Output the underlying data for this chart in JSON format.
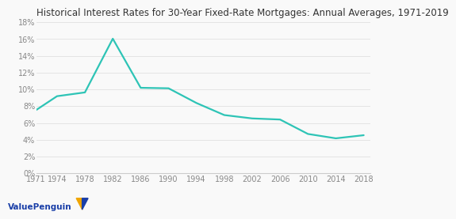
{
  "title": "Historical Interest Rates for 30-Year Fixed-Rate Mortgages: Annual Averages, 1971-2019",
  "line_color": "#2ec4b6",
  "background_color": "#f9f9f9",
  "years": [
    1971,
    1974,
    1978,
    1982,
    1986,
    1990,
    1994,
    1998,
    2002,
    2006,
    2010,
    2014,
    2018
  ],
  "rates": [
    7.54,
    9.19,
    9.64,
    16.04,
    10.19,
    10.13,
    8.38,
    6.94,
    6.54,
    6.41,
    4.69,
    4.17,
    4.54
  ],
  "xtick_years": [
    1971,
    1974,
    1978,
    1982,
    1986,
    1990,
    1994,
    1998,
    2002,
    2006,
    2010,
    2014,
    2018
  ],
  "ytick_vals": [
    0,
    2,
    4,
    6,
    8,
    10,
    12,
    14,
    16,
    18
  ],
  "ylim": [
    0,
    18
  ],
  "xlim_min": 1971,
  "xlim_max": 2019,
  "title_fontsize": 8.5,
  "tick_fontsize": 7.0,
  "line_width": 1.6,
  "watermark_text": "ValuePenguin",
  "watermark_color": "#1a3fa8",
  "watermark_fontsize": 7.5,
  "icon_color1": "#f0a500",
  "icon_color2": "#1a3fa8",
  "grid_color": "#e0e0e0",
  "spine_color": "#cccccc",
  "title_color": "#333333",
  "tick_color": "#888888"
}
